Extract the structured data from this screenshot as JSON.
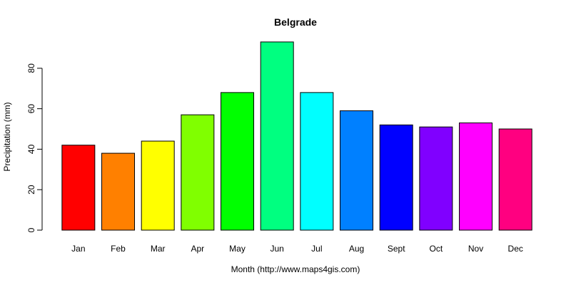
{
  "chart_data": {
    "type": "bar",
    "title": "Belgrade",
    "xlabel": "Month (http://www.maps4gis.com)",
    "ylabel": "Precipitation (mm)",
    "categories": [
      "Jan",
      "Feb",
      "Mar",
      "Apr",
      "May",
      "Jun",
      "Jul",
      "Aug",
      "Sept",
      "Oct",
      "Nov",
      "Dec"
    ],
    "values": [
      42,
      38,
      44,
      57,
      68,
      93,
      68,
      59,
      52,
      51,
      53,
      50
    ],
    "colors": [
      "#FF0000",
      "#FF8000",
      "#FFFF00",
      "#80FF00",
      "#00FF00",
      "#00FF80",
      "#00FFFF",
      "#0080FF",
      "#0000FF",
      "#8000FF",
      "#FF00FF",
      "#FF0080"
    ],
    "ylim": [
      0,
      95
    ],
    "yticks": [
      0,
      20,
      40,
      60,
      80
    ],
    "grid": false,
    "legend": "none"
  }
}
